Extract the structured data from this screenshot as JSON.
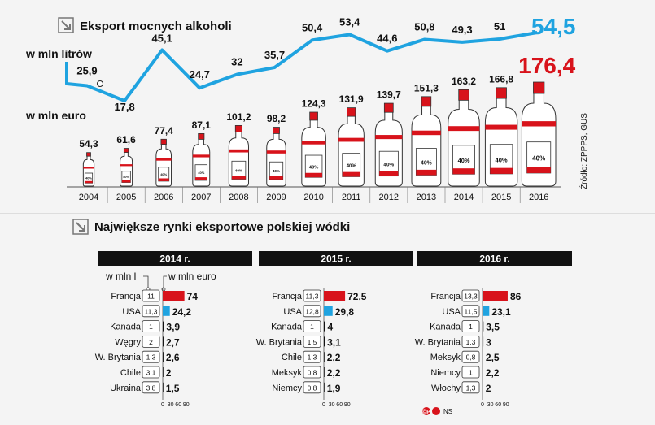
{
  "colors": {
    "blue": "#1fa3e0",
    "red": "#d8131b",
    "dark": "#111111",
    "bg": "#f4f4f4"
  },
  "icon": "diagonal-arrow-icon",
  "section1": {
    "title": "Eksport mocnych alkoholi",
    "liters_label": "w mln litrów",
    "euro_label": "w mln euro",
    "source": "Źródło: ZPPPS, GUS"
  },
  "section2": {
    "title": "Największe rynki eksportowe polskiej wódki",
    "legend_liters": "w mln l",
    "legend_euro": "w mln euro",
    "axis_ticks": [
      "0",
      "30",
      "60",
      "90"
    ]
  },
  "footer": {
    "logo": "©P",
    "author": "NS"
  },
  "chart_data": [
    {
      "type": "line",
      "title": "Eksport mocnych alkoholi",
      "series": [
        {
          "name": "w mln litrów",
          "values": [
            25.9,
            17.8,
            45.1,
            24.7,
            32,
            35.7,
            50.4,
            53.4,
            44.6,
            50.8,
            49.3,
            51,
            54.5
          ]
        },
        {
          "name": "w mln euro",
          "values": [
            54.3,
            61.6,
            77.4,
            87.1,
            101.2,
            98.2,
            124.3,
            131.9,
            139.7,
            151.3,
            163.2,
            166.8,
            176.4
          ]
        }
      ],
      "x": [
        "2004",
        "2005",
        "2006",
        "2007",
        "2008",
        "2009",
        "2010",
        "2011",
        "2012",
        "2013",
        "2014",
        "2015",
        "2016"
      ],
      "value_labels": {
        "w mln litrów": [
          "25,9",
          "17,8",
          "45,1",
          "24,7",
          "32",
          "35,7",
          "50,4",
          "53,4",
          "44,6",
          "50,8",
          "49,3",
          "51",
          "54,5"
        ],
        "w mln euro": [
          "54,3",
          "61,6",
          "77,4",
          "87,1",
          "101,2",
          "98,2",
          "124,3",
          "131,9",
          "139,7",
          "151,3",
          "163,2",
          "166,8",
          "176,4"
        ]
      },
      "bottle_label": "40%"
    },
    {
      "type": "bar",
      "title": "2014 r.",
      "xlim": [
        0,
        90
      ],
      "categories": [
        "Francja",
        "USA",
        "Kanada",
        "Węgry",
        "W. Brytania",
        "Chile",
        "Ukraina"
      ],
      "series": [
        {
          "name": "w mln euro",
          "values": [
            74,
            24.2,
            3.9,
            2.7,
            2.6,
            2,
            1.5
          ]
        },
        {
          "name": "w mln l",
          "values": [
            11,
            11.3,
            1,
            2,
            1.3,
            3.1,
            3.8
          ]
        }
      ],
      "value_labels": [
        "74",
        "24,2",
        "3,9",
        "2,7",
        "2,6",
        "2",
        "1,5"
      ],
      "liter_labels": [
        "11",
        "11,3",
        "1",
        "2",
        "1,3",
        "3,1",
        "3,8"
      ]
    },
    {
      "type": "bar",
      "title": "2015 r.",
      "xlim": [
        0,
        90
      ],
      "categories": [
        "Francja",
        "USA",
        "Kanada",
        "W. Brytania",
        "Chile",
        "Meksyk",
        "Niemcy"
      ],
      "series": [
        {
          "name": "w mln euro",
          "values": [
            72.5,
            29.8,
            4,
            3.1,
            2.2,
            2.2,
            1.9
          ]
        },
        {
          "name": "w mln l",
          "values": [
            11.3,
            12.8,
            1,
            1.5,
            1.3,
            0.8,
            0.8
          ]
        }
      ],
      "value_labels": [
        "72,5",
        "29,8",
        "4",
        "3,1",
        "2,2",
        "2,2",
        "1,9"
      ],
      "liter_labels": [
        "11,3",
        "12,8",
        "1",
        "1,5",
        "1,3",
        "0,8",
        "0,8"
      ]
    },
    {
      "type": "bar",
      "title": "2016 r.",
      "xlim": [
        0,
        90
      ],
      "categories": [
        "Francja",
        "USA",
        "Kanada",
        "W. Brytania",
        "Meksyk",
        "Niemcy",
        "Włochy"
      ],
      "series": [
        {
          "name": "w mln euro",
          "values": [
            86,
            23.1,
            3.5,
            3,
            2.5,
            2.2,
            2
          ]
        },
        {
          "name": "w mln l",
          "values": [
            13.3,
            11.5,
            1,
            1.3,
            0.8,
            1,
            1.3
          ]
        }
      ],
      "value_labels": [
        "86",
        "23,1",
        "3,5",
        "3",
        "2,5",
        "2,2",
        "2"
      ],
      "liter_labels": [
        "13,3",
        "11,5",
        "1",
        "1,3",
        "0,8",
        "1",
        "1,3"
      ]
    }
  ]
}
